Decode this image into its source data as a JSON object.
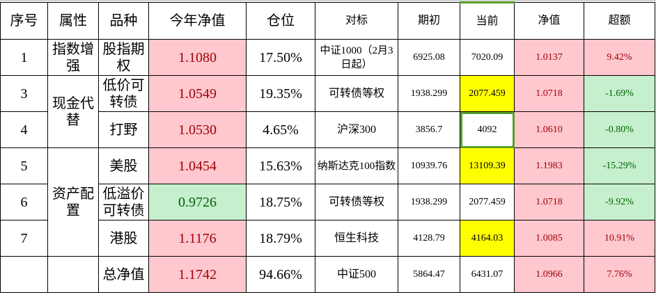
{
  "headers": [
    "序号",
    "属性",
    "品种",
    "今年净值",
    "仓位",
    "对标",
    "期初",
    "当前",
    "净值",
    "超额"
  ],
  "rows": [
    {
      "no": "1",
      "attr": "指数增强",
      "variety": "股指期权",
      "ytd_nav": "1.1080",
      "position": "17.50%",
      "benchmark": "中证1000（2月3日起）",
      "start": "6925.08",
      "current": "7020.09",
      "nav": "1.0137",
      "excess": "9.42%"
    },
    {
      "no": "3",
      "attr": "现金代替",
      "variety": "低价可转债",
      "ytd_nav": "1.0549",
      "position": "19.35%",
      "benchmark": "可转债等权",
      "start": "1938.299",
      "current": "2077.459",
      "nav": "1.0718",
      "excess": "-1.69%"
    },
    {
      "no": "4",
      "attr": "",
      "variety": "打野",
      "ytd_nav": "1.0530",
      "position": "4.65%",
      "benchmark": "沪深300",
      "start": "3856.7",
      "current": "4092",
      "nav": "1.0610",
      "excess": "-0.80%"
    },
    {
      "no": "5",
      "attr": "资产配置",
      "variety": "美股",
      "ytd_nav": "1.0454",
      "position": "15.63%",
      "benchmark": "纳斯达克100指数",
      "start": "10939.76",
      "current": "13109.39",
      "nav": "1.1983",
      "excess": "-15.29%"
    },
    {
      "no": "6",
      "attr": "",
      "variety": "低溢价可转债",
      "ytd_nav": "0.9726",
      "position": "18.75%",
      "benchmark": "可转债等权",
      "start": "1938.299",
      "current": "2077.459",
      "nav": "1.0718",
      "excess": "-9.92%"
    },
    {
      "no": "7",
      "attr": "",
      "variety": "港股",
      "ytd_nav": "1.1176",
      "position": "18.79%",
      "benchmark": "恒生科技",
      "start": "4128.79",
      "current": "4164.03",
      "nav": "1.0085",
      "excess": "10.91%"
    },
    {
      "no": "",
      "attr": "",
      "variety": "总净值",
      "ytd_nav": "1.1742",
      "position": "94.66%",
      "benchmark": "中证500",
      "start": "5864.47",
      "current": "6431.07",
      "nav": "1.0966",
      "excess": "7.76%"
    }
  ],
  "colors": {
    "positive_fill": "#FFC7CE",
    "positive_text": "#9C0006",
    "negative_fill": "#C6EFCE",
    "negative_text": "#006100",
    "highlight": "#FFFF00",
    "selection": "#5aa02c"
  },
  "ytd_nav_style": [
    "pink",
    "pink",
    "pink",
    "pink",
    "green",
    "pink",
    "pink"
  ],
  "current_style": [
    "",
    "yellow",
    "selected",
    "yellow",
    "",
    "yellow",
    ""
  ],
  "excess_style": [
    "pink",
    "green",
    "green",
    "green",
    "green",
    "pink",
    "pink"
  ],
  "selected_cell": "4092"
}
